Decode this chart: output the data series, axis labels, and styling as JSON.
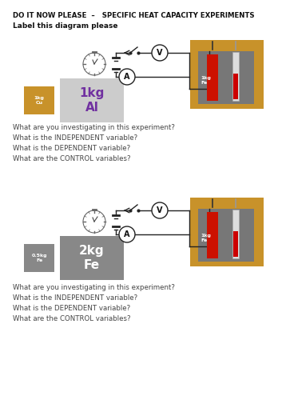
{
  "title": "DO IT NOW PLEASE  –   SPECIFIC HEAT CAPACITY EXPERIMENTS",
  "subtitle": "Label this diagram please",
  "questions": [
    "What are you investigating in this experiment?",
    "What is the INDEPENDENT variable?",
    "What is the DEPENDENT variable?",
    "What are the CONTROL variables?"
  ],
  "exp1": {
    "block1_color": "#c8922a",
    "block1_text": "1kg\nCu",
    "block1_text_color": "white",
    "block2_color": "#cccccc",
    "block2_text": "1kg\nAl",
    "block2_text_color": "#7030a0",
    "calorimeter_label": "1kg\nFe"
  },
  "exp2": {
    "block1_color": "#888888",
    "block1_text": "0.5kg\nFe",
    "block1_text_color": "white",
    "block2_color": "#888888",
    "block2_text": "2kg\nFe",
    "block2_text_color": "white",
    "calorimeter_label": "1kg\nFe"
  },
  "bg_color": "#ffffff",
  "circuit_color": "#222222",
  "calorimeter_outer": "#c8922a",
  "heater_color": "#cc1100",
  "thermometer_color": "#cccccc"
}
